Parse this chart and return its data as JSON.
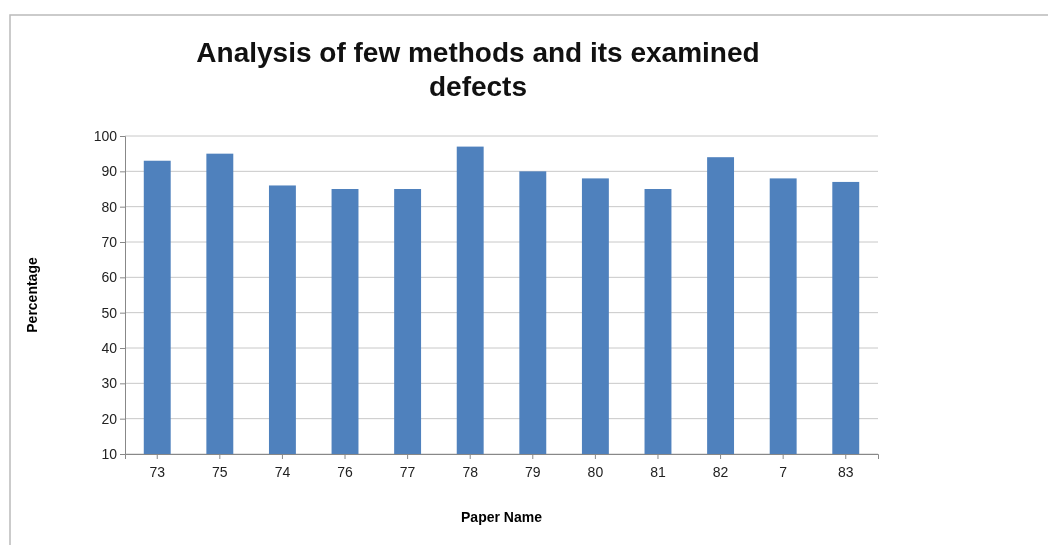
{
  "chart_data": {
    "type": "bar",
    "title": "Analysis of few methods and its examined defects",
    "xlabel": "Paper Name",
    "ylabel": "Percentage",
    "categories": [
      "73",
      "75",
      "74",
      "76",
      "77",
      "78",
      "79",
      "80",
      "81",
      "82",
      "7",
      "83"
    ],
    "values": [
      93,
      95,
      86,
      85,
      85,
      97,
      90,
      88,
      85,
      94,
      88,
      87
    ],
    "color": "#4f81bd",
    "ylim": [
      10,
      100
    ],
    "yticks": [
      10,
      20,
      30,
      40,
      50,
      60,
      70,
      80,
      90,
      100
    ],
    "grid": "y"
  }
}
